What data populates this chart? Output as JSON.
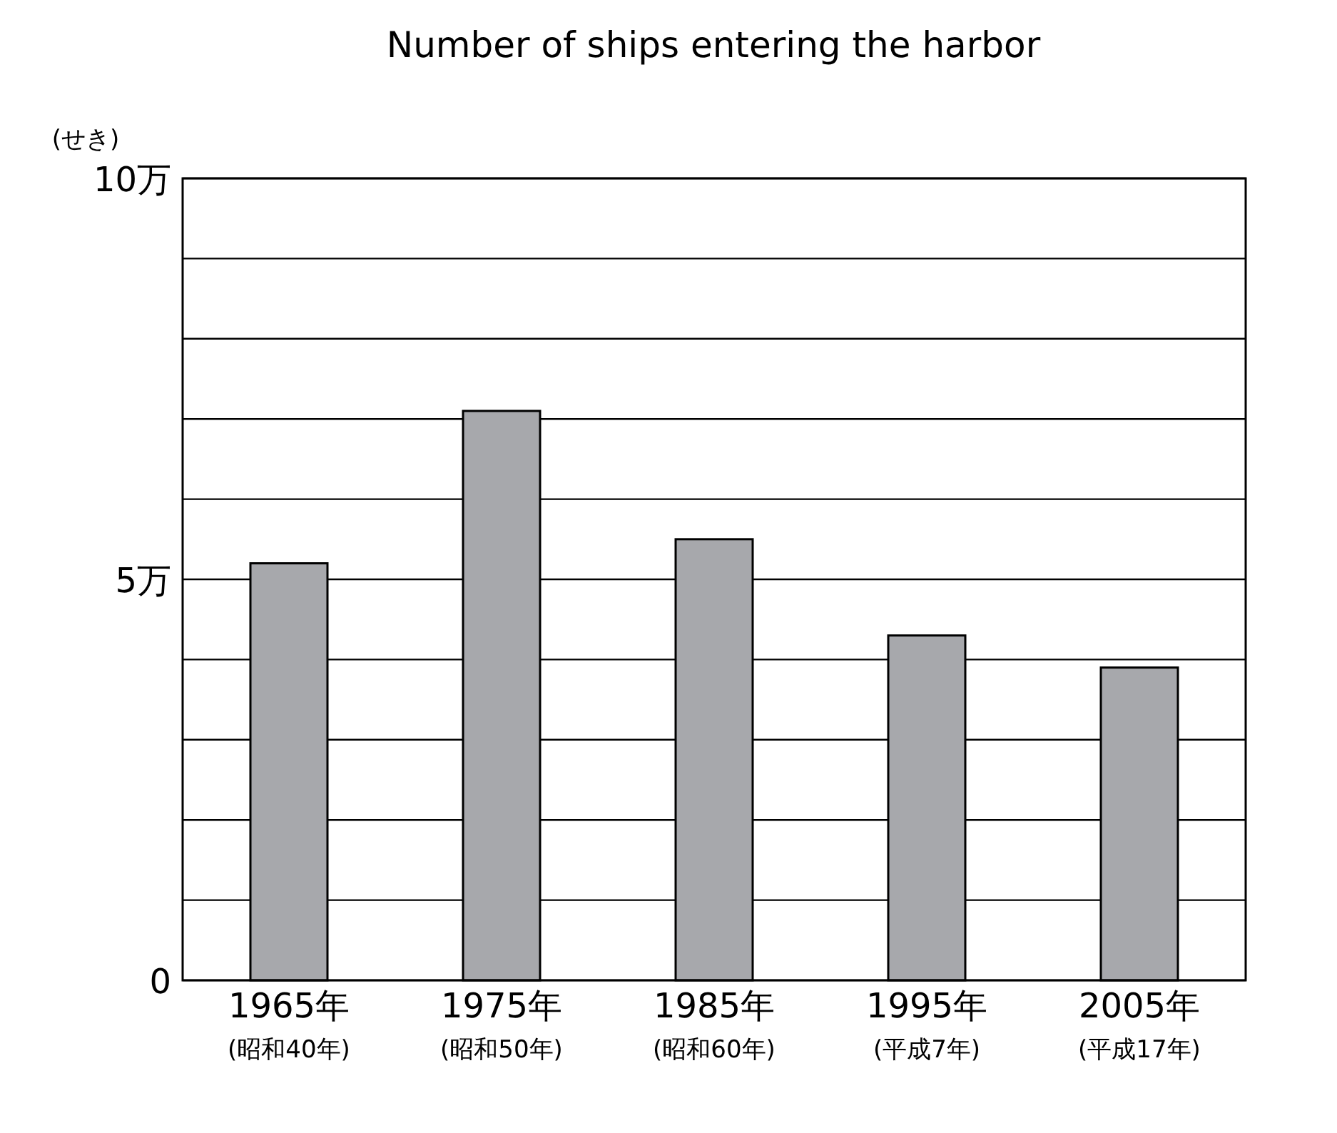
{
  "chart_data": {
    "type": "bar",
    "title": "Number of ships entering the harbor",
    "ylabel": "(せき)",
    "categories": [
      "1965年\n(昭和40年)",
      "1975年\n(昭和50年)",
      "1985年\n(昭和60年)",
      "1995年\n(平成7年)",
      "2005年\n(平成17年)"
    ],
    "values": [
      5.2,
      7.1,
      5.5,
      4.3,
      3.9
    ],
    "color": "#a7a8ac",
    "ylim": [
      0,
      10
    ],
    "yticks": [
      0,
      {
        "value": 1,
        "label": null
      },
      {
        "value": 2,
        "label": null
      },
      {
        "value": 3,
        "label": null
      },
      {
        "value": 4,
        "label": null
      },
      {
        "value": 5,
        "label": "5万"
      },
      {
        "value": 6,
        "label": null
      },
      {
        "value": 7,
        "label": null
      },
      {
        "value": 8,
        "label": null
      },
      {
        "value": 9,
        "label": null
      },
      {
        "value": 10,
        "label": "10万"
      }
    ],
    "grid": "y"
  }
}
